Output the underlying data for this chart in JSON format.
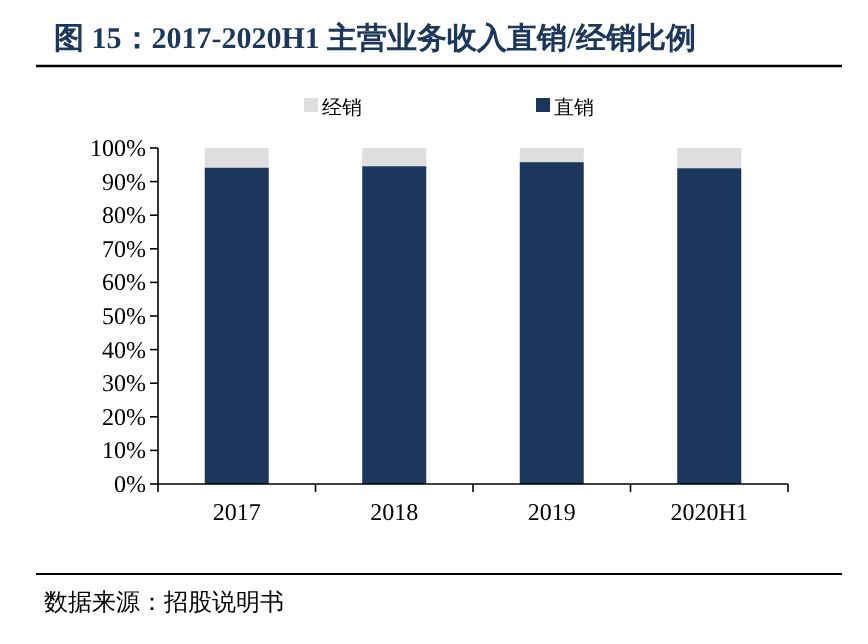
{
  "chart_data": {
    "type": "bar",
    "title": "图 15：2017-2020H1 主营业务收入直销/经销比例",
    "categories": [
      "2017",
      "2018",
      "2019",
      "2020H1"
    ],
    "stacked": true,
    "legend": "top",
    "series": [
      {
        "name": "直销",
        "color": "#1b375c",
        "values": [
          94.2,
          94.6,
          95.8,
          94.0
        ]
      },
      {
        "name": "经销",
        "color": "#dedede",
        "values": [
          5.8,
          5.4,
          4.2,
          6.0
        ]
      }
    ],
    "ylim": [
      0,
      100
    ],
    "yticks": [
      {
        "value": 0,
        "label": "0%"
      },
      {
        "value": 10,
        "label": "10%"
      },
      {
        "value": 20,
        "label": "20%"
      },
      {
        "value": 30,
        "label": "30%"
      },
      {
        "value": 40,
        "label": "40%"
      },
      {
        "value": 50,
        "label": "50%"
      },
      {
        "value": 60,
        "label": "60%"
      },
      {
        "value": 70,
        "label": "70%"
      },
      {
        "value": 80,
        "label": "80%"
      },
      {
        "value": 90,
        "label": "90%"
      },
      {
        "value": 100,
        "label": "100%"
      }
    ],
    "annotations": [
      "数据来源：招股说明书"
    ]
  }
}
